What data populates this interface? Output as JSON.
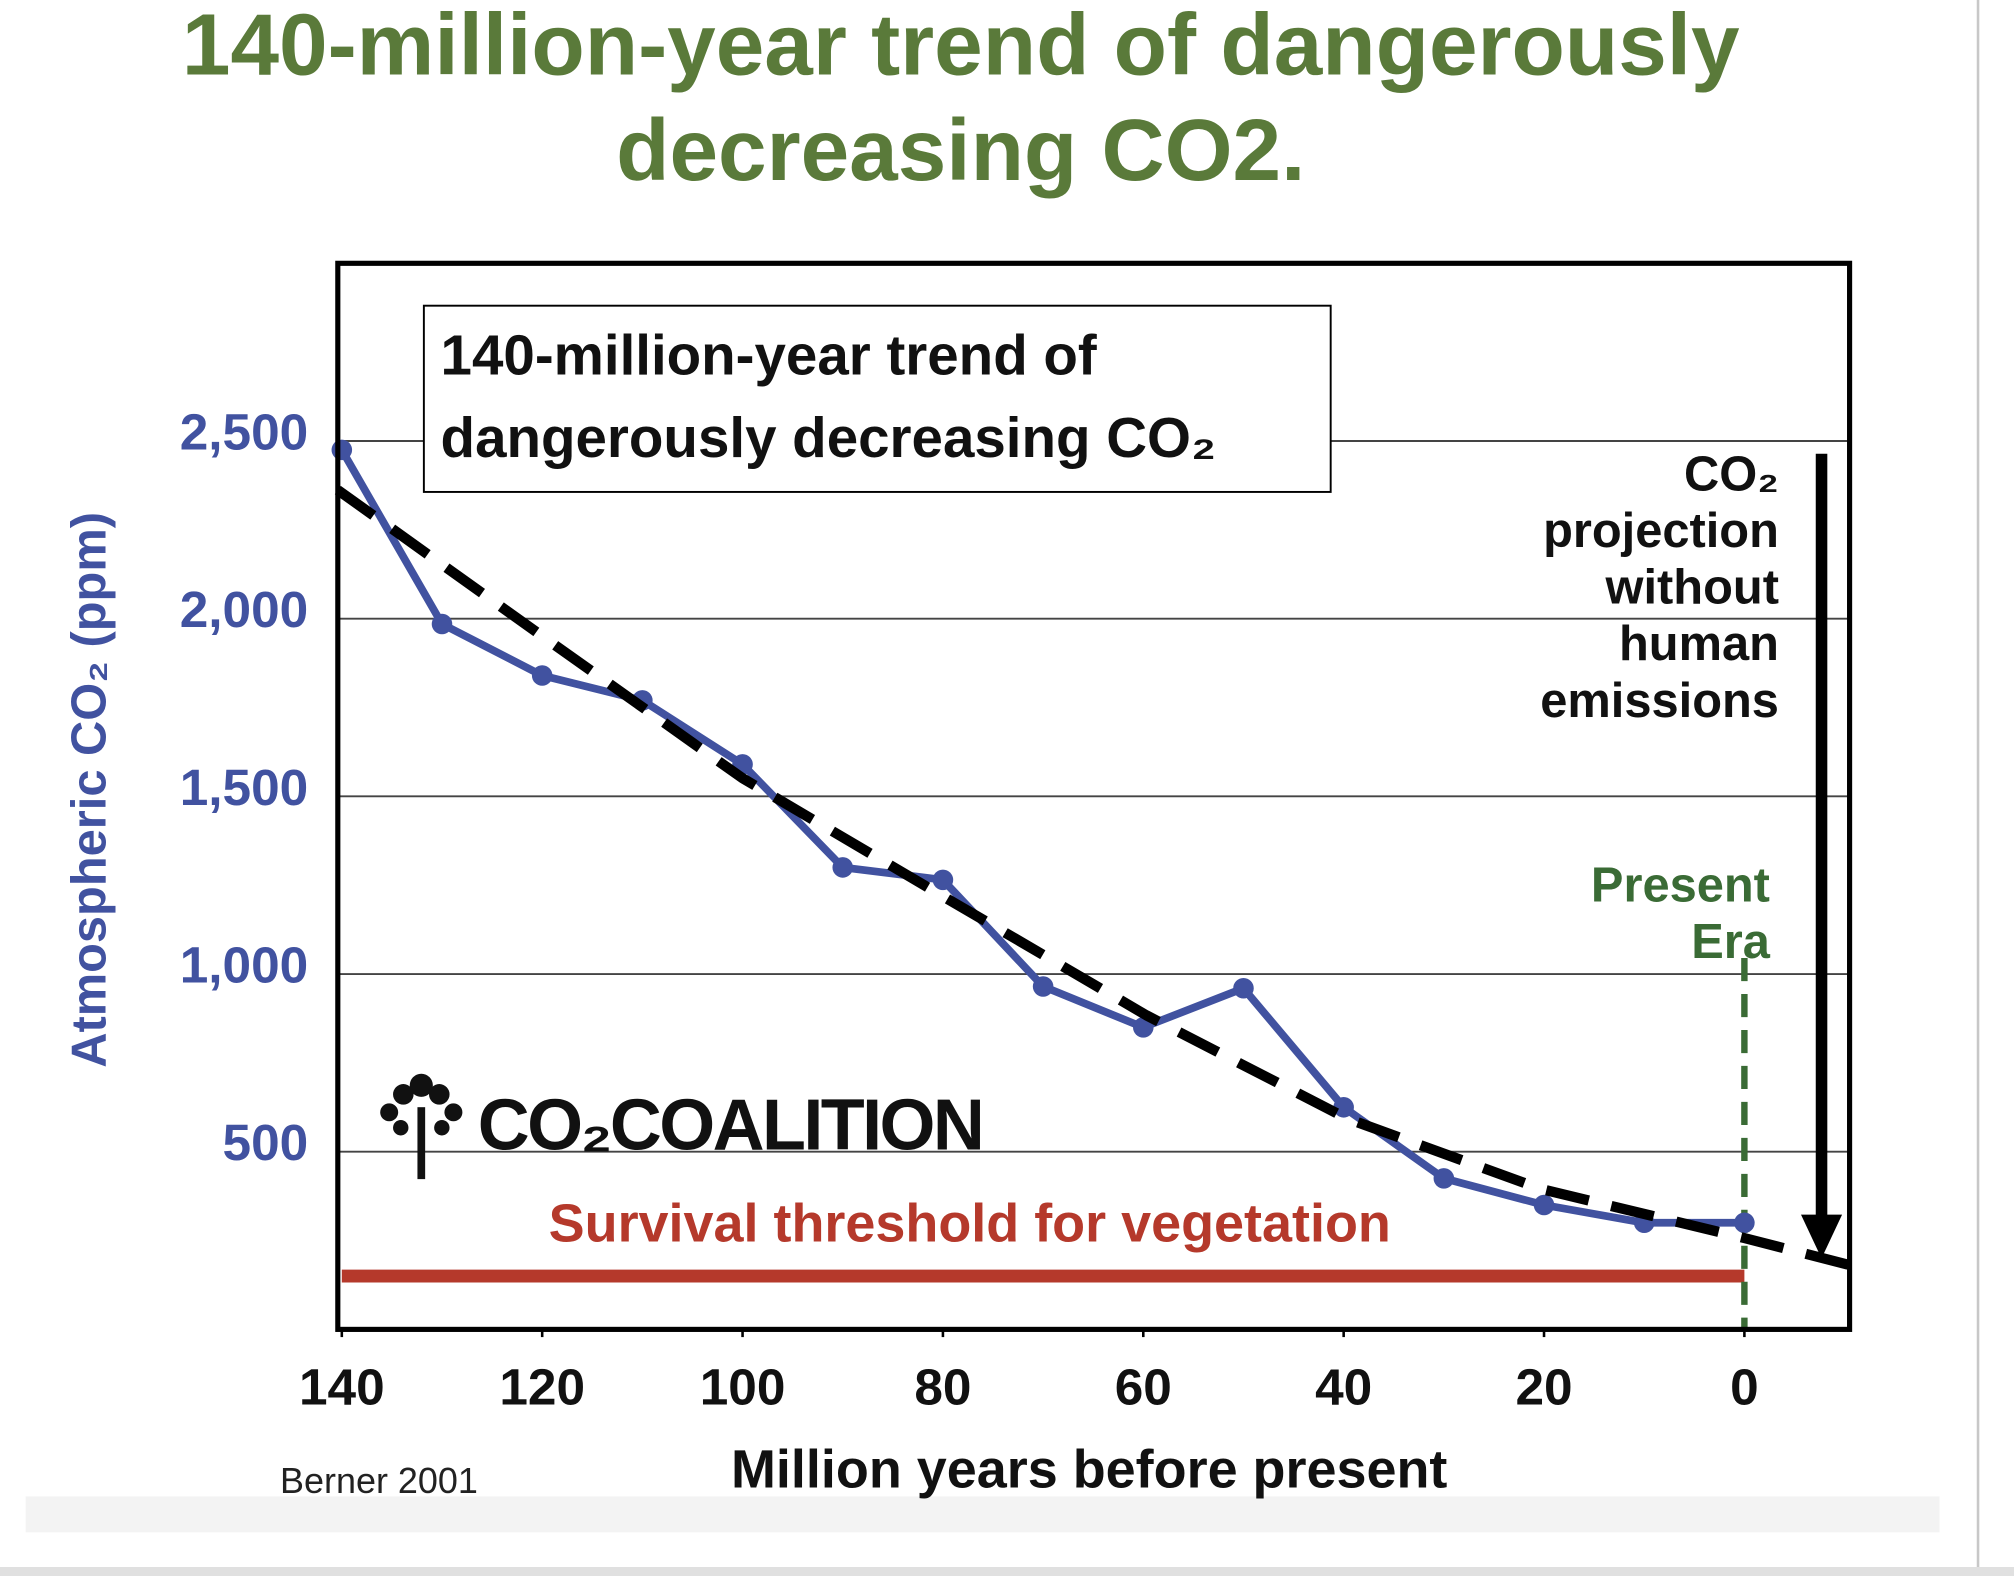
{
  "chart_data": {
    "type": "line",
    "title": [
      "140-million-year trend of dangerously",
      "decreasing CO2."
    ],
    "inset_title": [
      "140-million-year trend of",
      "dangerously decreasing CO₂"
    ],
    "y_label": "Atmospheric CO₂ (ppm)",
    "x_label": "Million years before present",
    "source": "Berner 2001",
    "logo": "CO₂COALITION",
    "xlim": [
      140.4,
      -10.5
    ],
    "ylim": [
      0,
      3000
    ],
    "xticks": [
      140,
      120,
      100,
      80,
      60,
      40,
      20,
      0
    ],
    "yticks": [
      {
        "value": 500,
        "label": "500"
      },
      {
        "value": 1000,
        "label": "1,000"
      },
      {
        "value": 1500,
        "label": "1,500"
      },
      {
        "value": 2000,
        "label": "2,000"
      },
      {
        "value": 2500,
        "label": "2,500"
      }
    ],
    "grid": true,
    "series": [
      {
        "color": "#4152a0",
        "markers": true,
        "dashed": false,
        "x": [
          140,
          130,
          120,
          110,
          100,
          90,
          80,
          70,
          60,
          50,
          40,
          30,
          20,
          10,
          0
        ],
        "values": [
          2475,
          1985,
          1840,
          1770,
          1590,
          1300,
          1265,
          965,
          850,
          960,
          625,
          425,
          350,
          300,
          300
        ]
      },
      {
        "color": "#000000",
        "markers": false,
        "dashed": true,
        "x": [
          140.4,
          120.3,
          100,
          79.7,
          59.7,
          39.7,
          20.3,
          0,
          -10.5
        ],
        "values": [
          2362,
          1957,
          1551,
          1214,
          884,
          594,
          395,
          257,
          181
        ]
      }
    ],
    "threshold": {
      "label": "Survival threshold for vegetation",
      "value": 150,
      "x": [
        140,
        0
      ],
      "color": "#b5392b"
    },
    "present_line": {
      "label": [
        "Present",
        "Era"
      ],
      "x": 0,
      "y": [
        0,
        1045
      ],
      "color": "#3a6b35"
    },
    "projection_arrow": {
      "label": [
        "CO₂",
        "projection",
        "without",
        "human",
        "emissions"
      ],
      "x": -7.7,
      "y": [
        2464,
        200
      ],
      "color": "#000000"
    }
  }
}
